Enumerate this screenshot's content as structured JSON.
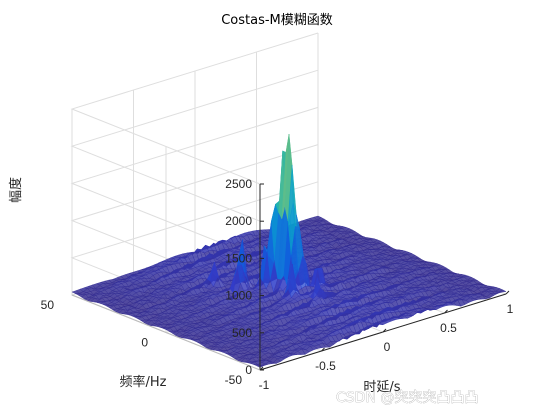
{
  "chart_data": {
    "type": "surface3d",
    "title": "Costas-M模糊函数",
    "xlabel": "时延/s",
    "ylabel": "频率/Hz",
    "zlabel": "幅度",
    "xlim": [
      -1,
      1
    ],
    "ylim": [
      -50,
      50
    ],
    "zlim": [
      0,
      2500
    ],
    "xticks": [
      "-1",
      "-0.5",
      "0",
      "0.5",
      "1"
    ],
    "yticks": [
      "50",
      "0",
      "-50"
    ],
    "zticks": [
      "0",
      "500",
      "1000",
      "1500",
      "2000",
      "2500"
    ],
    "grid": true,
    "colormap": "parula",
    "peak": {
      "x": 0,
      "y": 0,
      "z": 2150
    },
    "spurs": [
      {
        "x": 0,
        "y": 4,
        "z": 1100
      },
      {
        "x": -0.05,
        "y": 5,
        "z": 1000
      },
      {
        "x": -0.1,
        "y": 6,
        "z": 620
      },
      {
        "x": -0.2,
        "y": 12,
        "z": 650
      },
      {
        "x": -0.25,
        "y": 10,
        "z": 500
      },
      {
        "x": 0.05,
        "y": -4,
        "z": 600
      },
      {
        "x": -0.1,
        "y": -8,
        "z": 450
      },
      {
        "x": 0.15,
        "y": -6,
        "z": 420
      },
      {
        "x": 0.0,
        "y": -15,
        "z": 350
      },
      {
        "x": -0.3,
        "y": 20,
        "z": 300
      }
    ],
    "floor_level": 150
  },
  "watermark": "CSDN @突突突凸凸凸"
}
